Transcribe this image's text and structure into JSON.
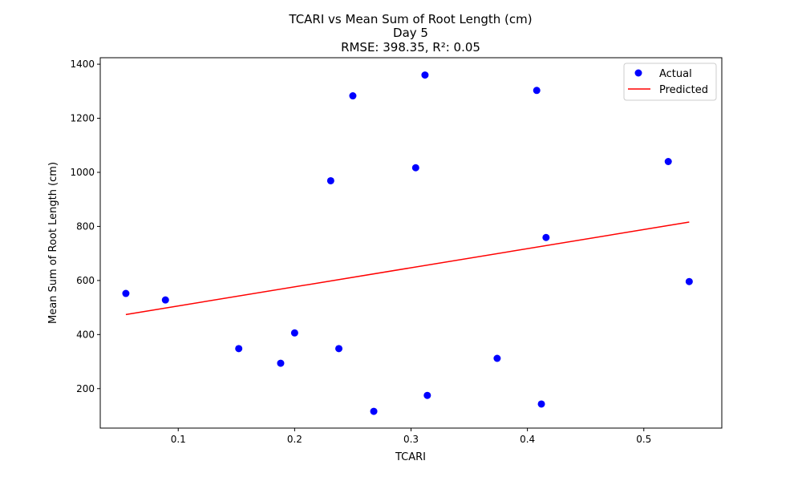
{
  "chart_data": {
    "type": "scatter",
    "title_lines": [
      "TCARI vs Mean Sum of Root Length (cm)",
      "Day 5",
      "RMSE: 398.35, R²: 0.05"
    ],
    "xlabel": "TCARI",
    "ylabel": "Mean Sum of Root Length (cm)",
    "xlim": [
      0.033,
      0.567
    ],
    "ylim": [
      54,
      1424
    ],
    "x_ticks": [
      0.1,
      0.2,
      0.3,
      0.4,
      0.5
    ],
    "x_tick_labels": [
      "0.1",
      "0.2",
      "0.3",
      "0.4",
      "0.5"
    ],
    "y_ticks": [
      200,
      400,
      600,
      800,
      1000,
      1200,
      1400
    ],
    "y_tick_labels": [
      "200",
      "400",
      "600",
      "800",
      "1000",
      "1200",
      "1400"
    ],
    "grid": false,
    "legend_position": "top-right",
    "series": [
      {
        "name": "Actual",
        "kind": "scatter",
        "color": "#0000ff",
        "points": [
          {
            "x": 0.055,
            "y": 552
          },
          {
            "x": 0.089,
            "y": 528
          },
          {
            "x": 0.152,
            "y": 348
          },
          {
            "x": 0.188,
            "y": 294
          },
          {
            "x": 0.2,
            "y": 406
          },
          {
            "x": 0.231,
            "y": 969
          },
          {
            "x": 0.238,
            "y": 348
          },
          {
            "x": 0.25,
            "y": 1283
          },
          {
            "x": 0.268,
            "y": 116
          },
          {
            "x": 0.304,
            "y": 1017
          },
          {
            "x": 0.312,
            "y": 1360
          },
          {
            "x": 0.314,
            "y": 175
          },
          {
            "x": 0.374,
            "y": 312
          },
          {
            "x": 0.408,
            "y": 1303
          },
          {
            "x": 0.412,
            "y": 143
          },
          {
            "x": 0.416,
            "y": 759
          },
          {
            "x": 0.521,
            "y": 1040
          },
          {
            "x": 0.539,
            "y": 596
          }
        ]
      },
      {
        "name": "Predicted",
        "kind": "line",
        "color": "#ff0000",
        "points": [
          {
            "x": 0.055,
            "y": 474
          },
          {
            "x": 0.539,
            "y": 816
          }
        ]
      }
    ]
  }
}
